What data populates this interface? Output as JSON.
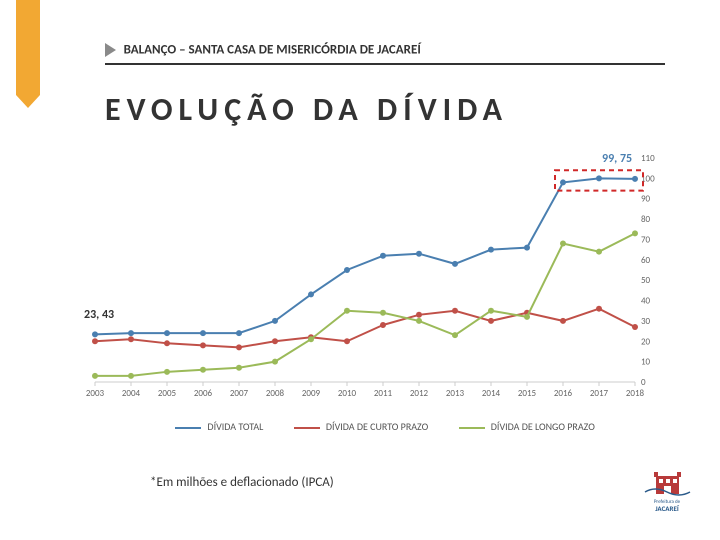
{
  "header": {
    "text": "BALANÇO – SANTA CASA DE MISERICÓRDIA DE JACAREÍ"
  },
  "title": "EVOLUÇÃO DA DÍVIDA",
  "footnote": "*Em milhões e deflacionado (IPCA)",
  "point_labels": {
    "left": "23, 43",
    "right": "99, 75"
  },
  "chart": {
    "type": "line",
    "background_color": "#ffffff",
    "ylim": [
      0,
      110
    ],
    "ytick_step": 10,
    "yticks": [
      0,
      10,
      20,
      30,
      40,
      50,
      60,
      70,
      80,
      90,
      100,
      110
    ],
    "x_categories": [
      "2003",
      "2004",
      "2005",
      "2006",
      "2007",
      "2008",
      "2009",
      "2010",
      "2011",
      "2012",
      "2013",
      "2014",
      "2015",
      "2016",
      "2017",
      "2018"
    ],
    "axis_color": "#cccccc",
    "tick_font_size": 9,
    "tick_color": "#666666",
    "line_width": 2,
    "marker_size": 3,
    "series": [
      {
        "name": "DÍVIDA TOTAL",
        "color": "#4a7fb0",
        "values": [
          23.4,
          24,
          24,
          24,
          24,
          30,
          43,
          55,
          62,
          63,
          58,
          65,
          66,
          98,
          100,
          99.75
        ]
      },
      {
        "name": "DÍVIDA DE CURTO PRAZO",
        "color": "#c05048",
        "values": [
          20,
          21,
          19,
          18,
          17,
          20,
          22,
          20,
          28,
          33,
          35,
          30,
          34,
          30,
          36,
          27
        ]
      },
      {
        "name": "DÍVIDA DE LONGO PRAZO",
        "color": "#9bba59",
        "values": [
          3,
          3,
          5,
          6,
          7,
          10,
          21,
          35,
          34,
          30,
          23,
          35,
          32,
          68,
          64,
          73
        ]
      }
    ],
    "highlight_box": {
      "x_start_idx": 13,
      "x_end_idx": 15,
      "y_low": 94,
      "y_high": 104,
      "stroke": "#d02828",
      "dash": "5,4",
      "width": 2
    }
  },
  "legend": {
    "items": [
      {
        "label": "DÍVIDA TOTAL",
        "color": "#4a7fb0"
      },
      {
        "label": "DÍVIDA DE CURTO PRAZO",
        "color": "#c05048"
      },
      {
        "label": "DÍVIDA DE LONGO PRAZO",
        "color": "#9bba59"
      }
    ]
  },
  "left_accent": {
    "fill": "#f2a833",
    "shadow": "#8a8a8a"
  },
  "logo": {
    "caption_top": "Prefeitura de",
    "caption_bottom": "JACAREÍ",
    "building_color": "#b83a3a",
    "text_color": "#2a5a8a"
  }
}
